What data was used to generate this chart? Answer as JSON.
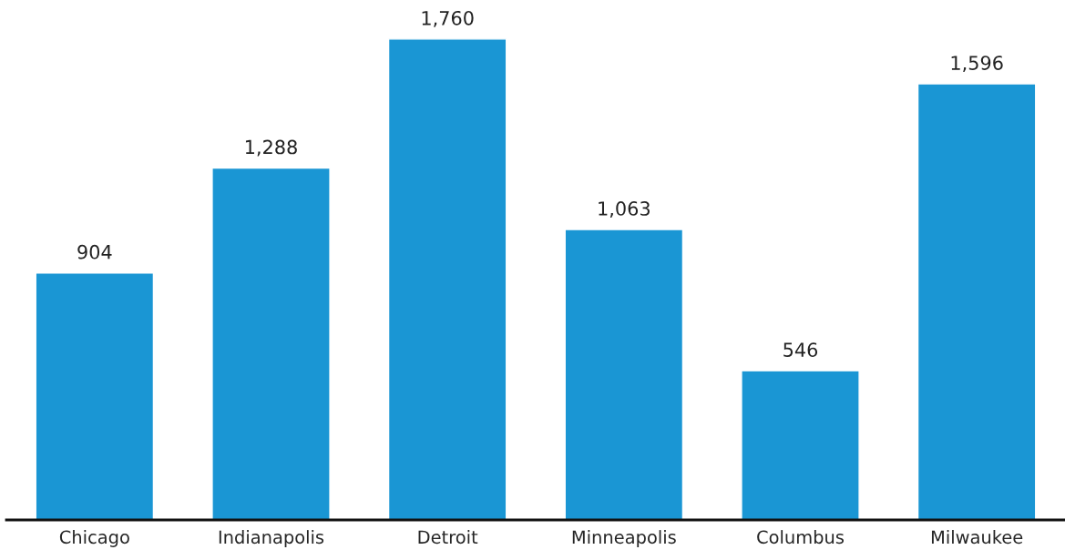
{
  "chart_data": {
    "type": "bar",
    "categories": [
      "Chicago",
      "Indianapolis",
      "Detroit",
      "Minneapolis",
      "Columbus",
      "Milwaukee"
    ],
    "values": [
      904,
      1288,
      1760,
      1063,
      546,
      1596
    ],
    "color": "#1a96d4",
    "value_labels": [
      "904",
      "1,288",
      "1,760",
      "1,063",
      "546",
      "1,596"
    ],
    "grid": false,
    "legend": false
  }
}
